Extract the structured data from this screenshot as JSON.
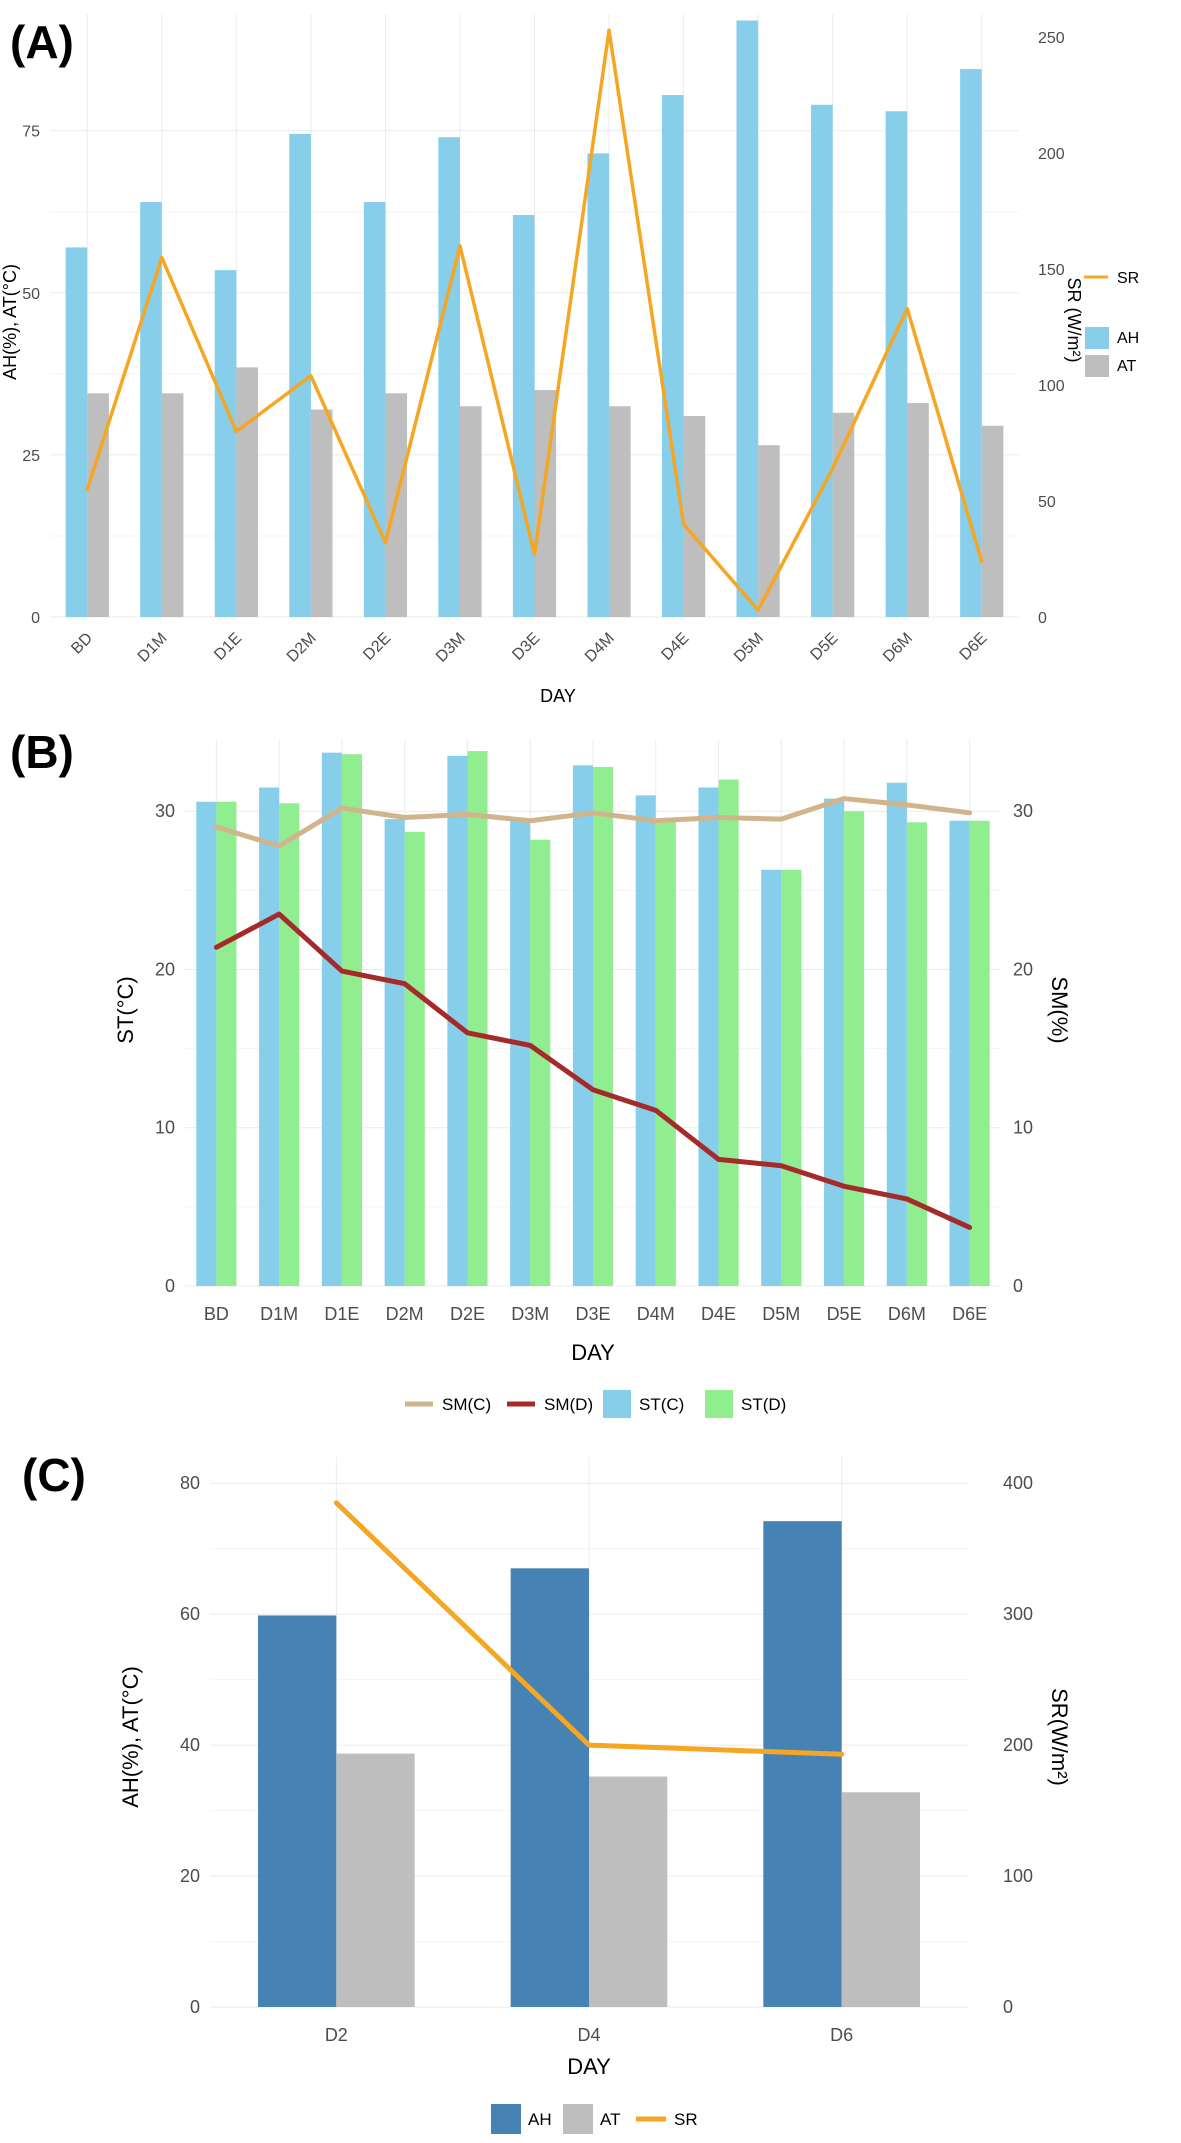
{
  "chart_data": [
    {
      "panel_label": "(A)",
      "type": "bar+line",
      "xlabel": "DAY",
      "ylabel_left": "AH(%), AT(°C)",
      "ylabel_right": "SR (W/m²)",
      "ylim_left": [
        0,
        93
      ],
      "ylim_right": [
        0,
        260
      ],
      "yticks_left": [
        0,
        25,
        50,
        75
      ],
      "yticks_right": [
        0,
        50,
        100,
        150,
        200,
        250
      ],
      "categories": [
        "BD",
        "D1M",
        "D1E",
        "D2M",
        "D2E",
        "D3M",
        "D3E",
        "D4M",
        "D4E",
        "D5M",
        "D5E",
        "D6M",
        "D6E"
      ],
      "series": [
        {
          "name": "AH",
          "type": "bar",
          "axis": "left",
          "color": "#87ceeb",
          "values": [
            57,
            64,
            53.5,
            74.5,
            64,
            74,
            62,
            71.5,
            80.5,
            92,
            79,
            78,
            84.5
          ]
        },
        {
          "name": "AT",
          "type": "bar",
          "axis": "left",
          "color": "#bebebe",
          "values": [
            34.5,
            34.5,
            38.5,
            32,
            34.5,
            32.5,
            35,
            32.5,
            31,
            26.5,
            31.5,
            33,
            29.5
          ]
        },
        {
          "name": "SR",
          "type": "line",
          "axis": "right",
          "color": "#f5a623",
          "values": [
            55,
            155,
            80,
            104,
            32,
            160,
            27,
            253,
            40,
            3,
            64,
            133,
            24
          ]
        }
      ],
      "legend": [
        {
          "label": "SR",
          "kind": "line",
          "color": "#f5a623"
        },
        {
          "label": "AH",
          "kind": "box",
          "color": "#87ceeb"
        },
        {
          "label": "AT",
          "kind": "box",
          "color": "#bebebe"
        }
      ]
    },
    {
      "panel_label": "(B)",
      "type": "bar+line",
      "xlabel": "DAY",
      "ylabel_left": "ST(°C)",
      "ylabel_right": "SM(%)",
      "ylim_left": [
        0,
        34.5
      ],
      "ylim_right": [
        0,
        34.5
      ],
      "yticks_left": [
        0,
        10,
        20,
        30
      ],
      "yticks_right": [
        0,
        10,
        20,
        30
      ],
      "categories": [
        "BD",
        "D1M",
        "D1E",
        "D2M",
        "D2E",
        "D3M",
        "D3E",
        "D4M",
        "D4E",
        "D5M",
        "D5E",
        "D6M",
        "D6E"
      ],
      "series": [
        {
          "name": "ST(C)",
          "type": "bar",
          "axis": "left",
          "color": "#87ceeb",
          "values": [
            30.6,
            31.5,
            33.7,
            29.5,
            33.5,
            29.4,
            32.9,
            31.0,
            31.5,
            26.3,
            30.8,
            31.8,
            29.4
          ]
        },
        {
          "name": "ST(D)",
          "type": "bar",
          "axis": "left",
          "color": "#90ee90",
          "values": [
            30.6,
            30.5,
            33.6,
            28.7,
            33.8,
            28.2,
            32.8,
            29.4,
            32.0,
            26.3,
            30.0,
            29.3,
            29.4
          ]
        },
        {
          "name": "SM(C)",
          "type": "line",
          "axis": "right",
          "color": "#d2b48c",
          "values": [
            29.0,
            27.8,
            30.2,
            29.6,
            29.8,
            29.4,
            29.9,
            29.4,
            29.6,
            29.5,
            30.8,
            30.4,
            29.9
          ]
        },
        {
          "name": "SM(D)",
          "type": "line",
          "axis": "right",
          "color": "#a52a2a",
          "values": [
            21.4,
            23.5,
            19.9,
            19.1,
            16.0,
            15.2,
            12.4,
            11.1,
            8.0,
            7.6,
            6.3,
            5.5,
            3.7
          ]
        }
      ],
      "legend": [
        {
          "label": "SM(C)",
          "kind": "line",
          "color": "#d2b48c"
        },
        {
          "label": "SM(D)",
          "kind": "line",
          "color": "#a52a2a"
        },
        {
          "label": "ST(C)",
          "kind": "box",
          "color": "#87ceeb"
        },
        {
          "label": "ST(D)",
          "kind": "box",
          "color": "#90ee90"
        }
      ]
    },
    {
      "panel_label": "(C)",
      "type": "bar+line",
      "xlabel": "DAY",
      "ylabel_left": "AH(%), AT(°C)",
      "ylabel_right": "SR(W/m²)",
      "ylim_left": [
        0,
        84
      ],
      "ylim_right": [
        0,
        420
      ],
      "yticks_left": [
        0,
        20,
        40,
        60,
        80
      ],
      "yticks_right": [
        0,
        100,
        200,
        300,
        400
      ],
      "categories": [
        "D2",
        "D4",
        "D6"
      ],
      "series": [
        {
          "name": "AH",
          "type": "bar",
          "axis": "left",
          "color": "#4682b4",
          "values": [
            59.8,
            67.0,
            74.2
          ]
        },
        {
          "name": "AT",
          "type": "bar",
          "axis": "left",
          "color": "#bebebe",
          "values": [
            38.7,
            35.2,
            32.8
          ]
        },
        {
          "name": "SR",
          "type": "line",
          "axis": "right",
          "color": "#f5a623",
          "values": [
            385,
            200,
            193
          ]
        }
      ],
      "legend": [
        {
          "label": "AH",
          "kind": "box",
          "color": "#4682b4"
        },
        {
          "label": "AT",
          "kind": "box",
          "color": "#bebebe"
        },
        {
          "label": "SR",
          "kind": "line",
          "color": "#f5a623"
        }
      ]
    }
  ]
}
